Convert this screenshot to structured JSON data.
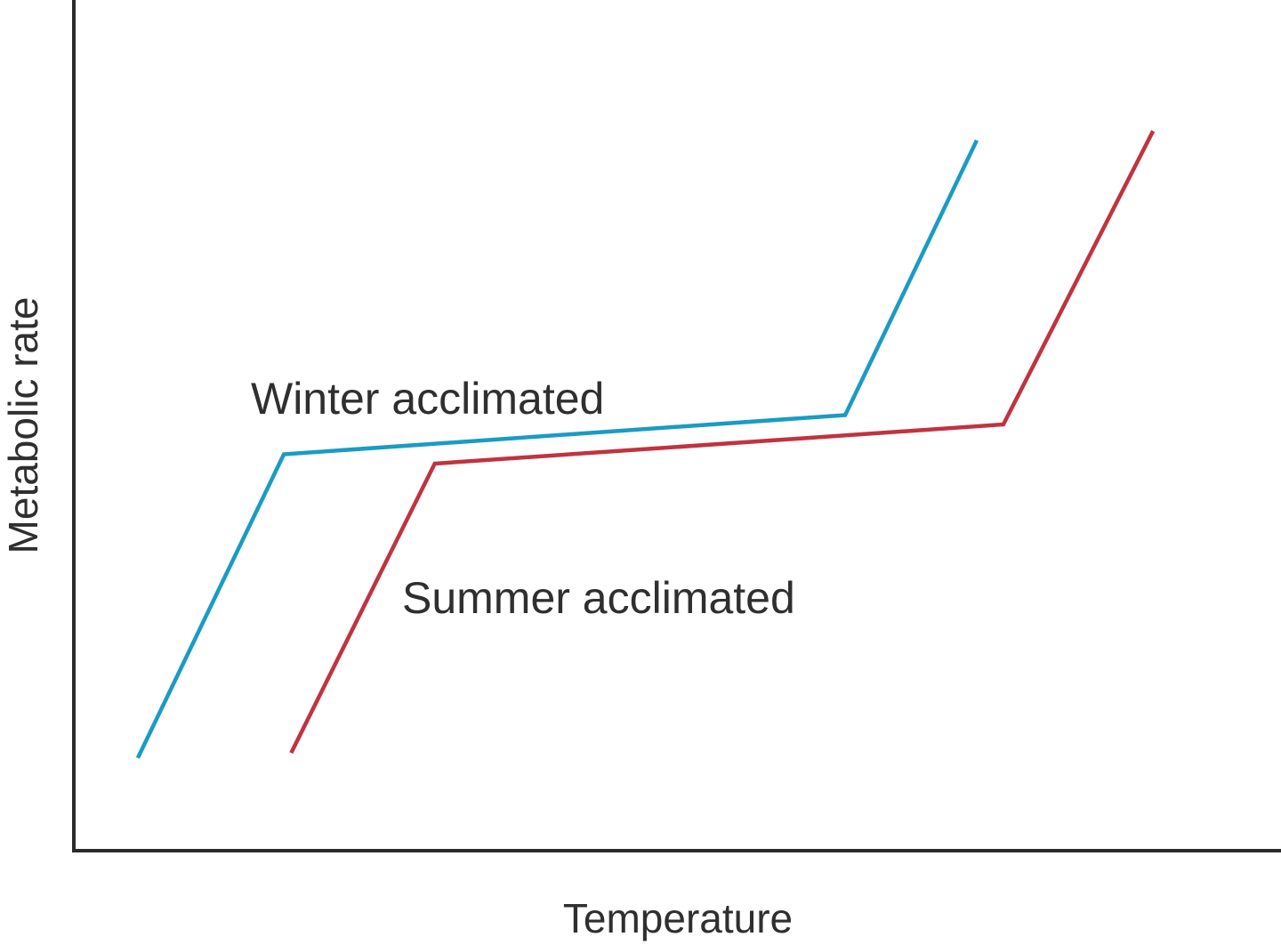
{
  "chart_data": {
    "type": "line",
    "title": "",
    "xlabel": "Temperature",
    "ylabel": "Metabolic rate",
    "xlim": [
      0,
      100
    ],
    "ylim": [
      0,
      100
    ],
    "grid": false,
    "legend": "none",
    "series": [
      {
        "name": "Winter acclimated",
        "color": "#1a9bc4",
        "x": [
          5.3,
          17.4,
          63.9,
          74.8
        ],
        "y": [
          10.9,
          46.6,
          51.2,
          83.5
        ]
      },
      {
        "name": "Summer acclimated",
        "color": "#c0333f",
        "x": [
          18.0,
          29.9,
          77.0,
          89.4
        ],
        "y": [
          11.5,
          45.5,
          50.1,
          84.6
        ]
      }
    ]
  }
}
